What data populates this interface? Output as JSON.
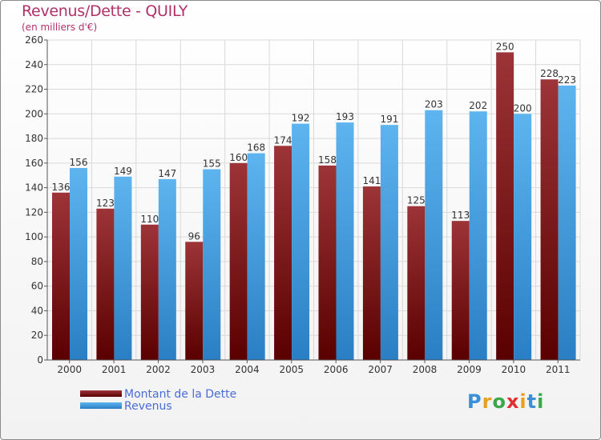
{
  "title": "Revenus/Dette - QUILY",
  "subtitle": "(en milliers d'€)",
  "logo": {
    "letters": [
      {
        "char": "P",
        "color": "#3a8fd6"
      },
      {
        "char": "r",
        "color": "#e8a020"
      },
      {
        "char": "o",
        "color": "#3aa84a"
      },
      {
        "char": "x",
        "color": "#e03030"
      },
      {
        "char": "i",
        "color": "#e8a020"
      },
      {
        "char": "t",
        "color": "#3a8fd6"
      },
      {
        "char": "i",
        "color": "#3aa84a"
      }
    ]
  },
  "colors": {
    "dette_top": "#9c3438",
    "dette_bottom": "#5a0000",
    "revenus_top": "#5eb4ee",
    "revenus_bottom": "#2a7fc4",
    "grid": "#d9d9d9",
    "axis": "#555555"
  },
  "chart_data": {
    "type": "bar",
    "title": "Revenus/Dette - QUILY",
    "subtitle": "(en milliers d'€)",
    "categories": [
      "2000",
      "2001",
      "2002",
      "2003",
      "2004",
      "2005",
      "2006",
      "2007",
      "2008",
      "2009",
      "2010",
      "2011"
    ],
    "series": [
      {
        "name": "Montant de la Dette",
        "values": [
          136,
          123,
          110,
          96,
          160,
          174,
          158,
          141,
          125,
          113,
          250,
          228
        ]
      },
      {
        "name": "Revenus",
        "values": [
          156,
          149,
          147,
          155,
          168,
          192,
          193,
          191,
          203,
          202,
          200,
          223
        ]
      }
    ],
    "ylim": [
      0,
      260
    ],
    "yticks": [
      0,
      20,
      40,
      60,
      80,
      100,
      120,
      140,
      160,
      180,
      200,
      220,
      240,
      260
    ],
    "grid": true,
    "legend_position": "bottom-left",
    "data_labels": true
  }
}
